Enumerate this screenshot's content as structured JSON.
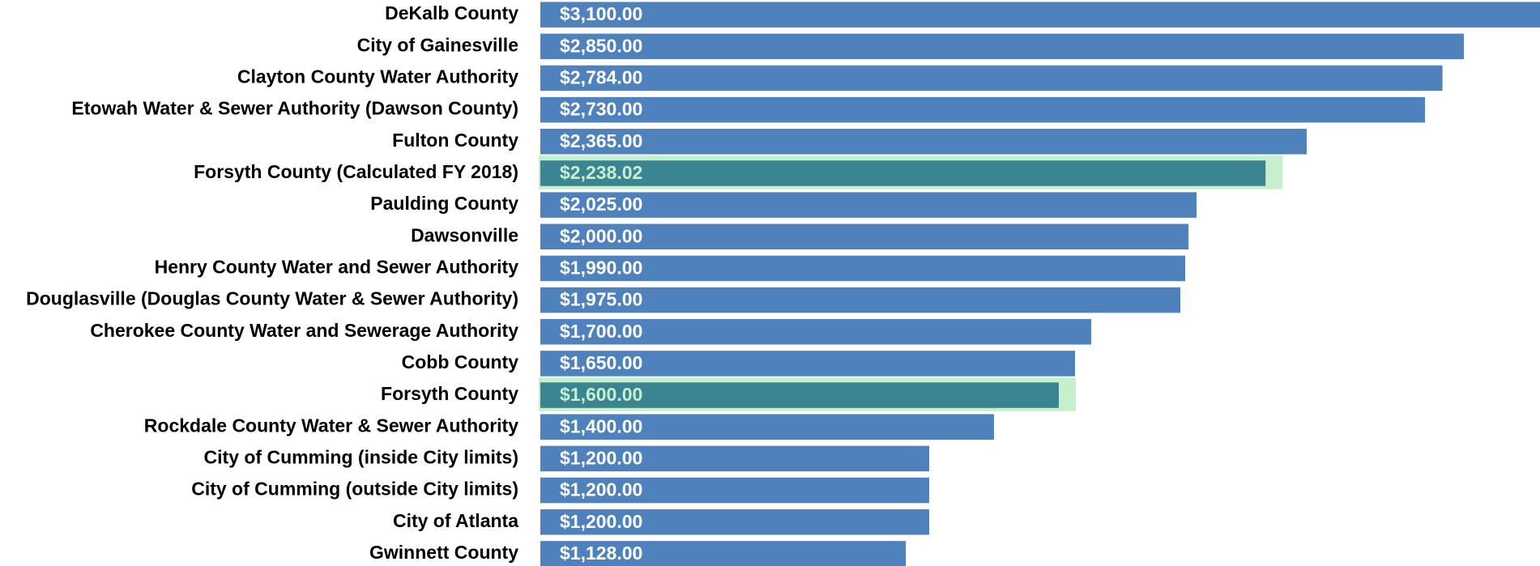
{
  "chart_data": {
    "type": "hbar",
    "categories": [
      "DeKalb County",
      "City of Gainesville",
      "Clayton County Water Authority",
      "Etowah Water & Sewer Authority (Dawson County)",
      "Fulton County",
      "Forsyth County (Calculated FY 2018)",
      "Paulding County",
      "Dawsonville",
      "Henry County Water and Sewer Authority",
      "Douglasville (Douglas County Water & Sewer Authority)",
      "Cherokee County Water and Sewerage Authority",
      "Cobb County",
      "Forsyth County",
      "Rockdale County Water & Sewer Authority",
      "City of Cumming (inside City limits)",
      "City of Cumming (outside City limits)",
      "City of Atlanta",
      "Gwinnett County"
    ],
    "values": [
      3100,
      2850,
      2784,
      2730,
      2365,
      2238.02,
      2025,
      2000,
      1990,
      1975,
      1700,
      1650,
      1600,
      1400,
      1200,
      1200,
      1200,
      1128
    ],
    "value_labels": [
      "$3,100.00",
      "$2,850.00",
      "$2,784.00",
      "$2,730.00",
      "$2,365.00",
      "$2,238.02",
      "$2,025.00",
      "$2,000.00",
      "$1,990.00",
      "$1,975.00",
      "$1,700.00",
      "$1,650.00",
      "$1,600.00",
      "$1,400.00",
      "$1,200.00",
      "$1,200.00",
      "$1,200.00",
      "$1,128.00"
    ],
    "colors": [
      "#4f81bd",
      "#4f81bd",
      "#4f81bd",
      "#4f81bd",
      "#4f81bd",
      "#3a8591",
      "#4f81bd",
      "#4f81bd",
      "#4f81bd",
      "#4f81bd",
      "#4f81bd",
      "#4f81bd",
      "#3a8591",
      "#4f81bd",
      "#4f81bd",
      "#4f81bd",
      "#4f81bd",
      "#4f81bd"
    ],
    "label_colors": [
      "#ffffff",
      "#ffffff",
      "#ffffff",
      "#ffffff",
      "#ffffff",
      "#c6efce",
      "#ffffff",
      "#ffffff",
      "#ffffff",
      "#ffffff",
      "#ffffff",
      "#ffffff",
      "#c6efce",
      "#ffffff",
      "#ffffff",
      "#ffffff",
      "#ffffff",
      "#ffffff"
    ],
    "highlight_border": "#c6efce",
    "xlim": [
      0,
      3085
    ]
  }
}
